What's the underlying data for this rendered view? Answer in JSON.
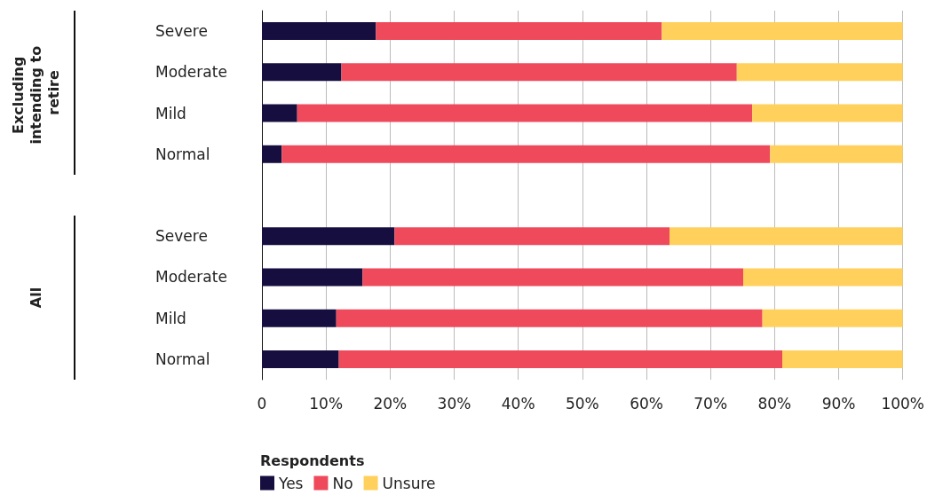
{
  "chart_data": {
    "type": "bar",
    "orientation": "horizontal",
    "stacked": true,
    "categories": [
      "Severe",
      "Moderate",
      "Mild",
      "Normal",
      null,
      "Severe",
      "Moderate",
      "Mild",
      "Normal"
    ],
    "series": [
      {
        "name": "Yes",
        "color": "#160e3f",
        "values": [
          17.8,
          12.4,
          5.5,
          3.1,
          null,
          20.7,
          15.7,
          11.6,
          12.0
        ]
      },
      {
        "name": "No",
        "color": "#ee4a5c",
        "values": [
          44.6,
          61.7,
          71.0,
          76.2,
          null,
          42.9,
          59.4,
          66.5,
          69.2
        ]
      },
      {
        "name": "Unsure",
        "color": "#ffd05c",
        "values": [
          37.6,
          25.9,
          23.5,
          20.7,
          null,
          36.4,
          24.9,
          21.9,
          18.8
        ]
      }
    ],
    "xlim": [
      0,
      100
    ],
    "xticks": [
      0,
      {
        "value": 10,
        "label": "10%"
      },
      {
        "value": 20,
        "label": "20%"
      },
      {
        "value": 30,
        "label": "30%"
      },
      {
        "value": 40,
        "label": "40%"
      },
      {
        "value": 50,
        "label": "50%"
      },
      {
        "value": 60,
        "label": "60%"
      },
      {
        "value": 70,
        "label": "70%"
      },
      {
        "value": 80,
        "label": "80%"
      },
      {
        "value": 90,
        "label": "90%"
      },
      {
        "value": 100,
        "label": "100%"
      }
    ],
    "grid": "x",
    "legend": "bottom left",
    "legend_title": "Respondents",
    "annotations": [
      "Excluding intending to retire",
      "All"
    ]
  }
}
